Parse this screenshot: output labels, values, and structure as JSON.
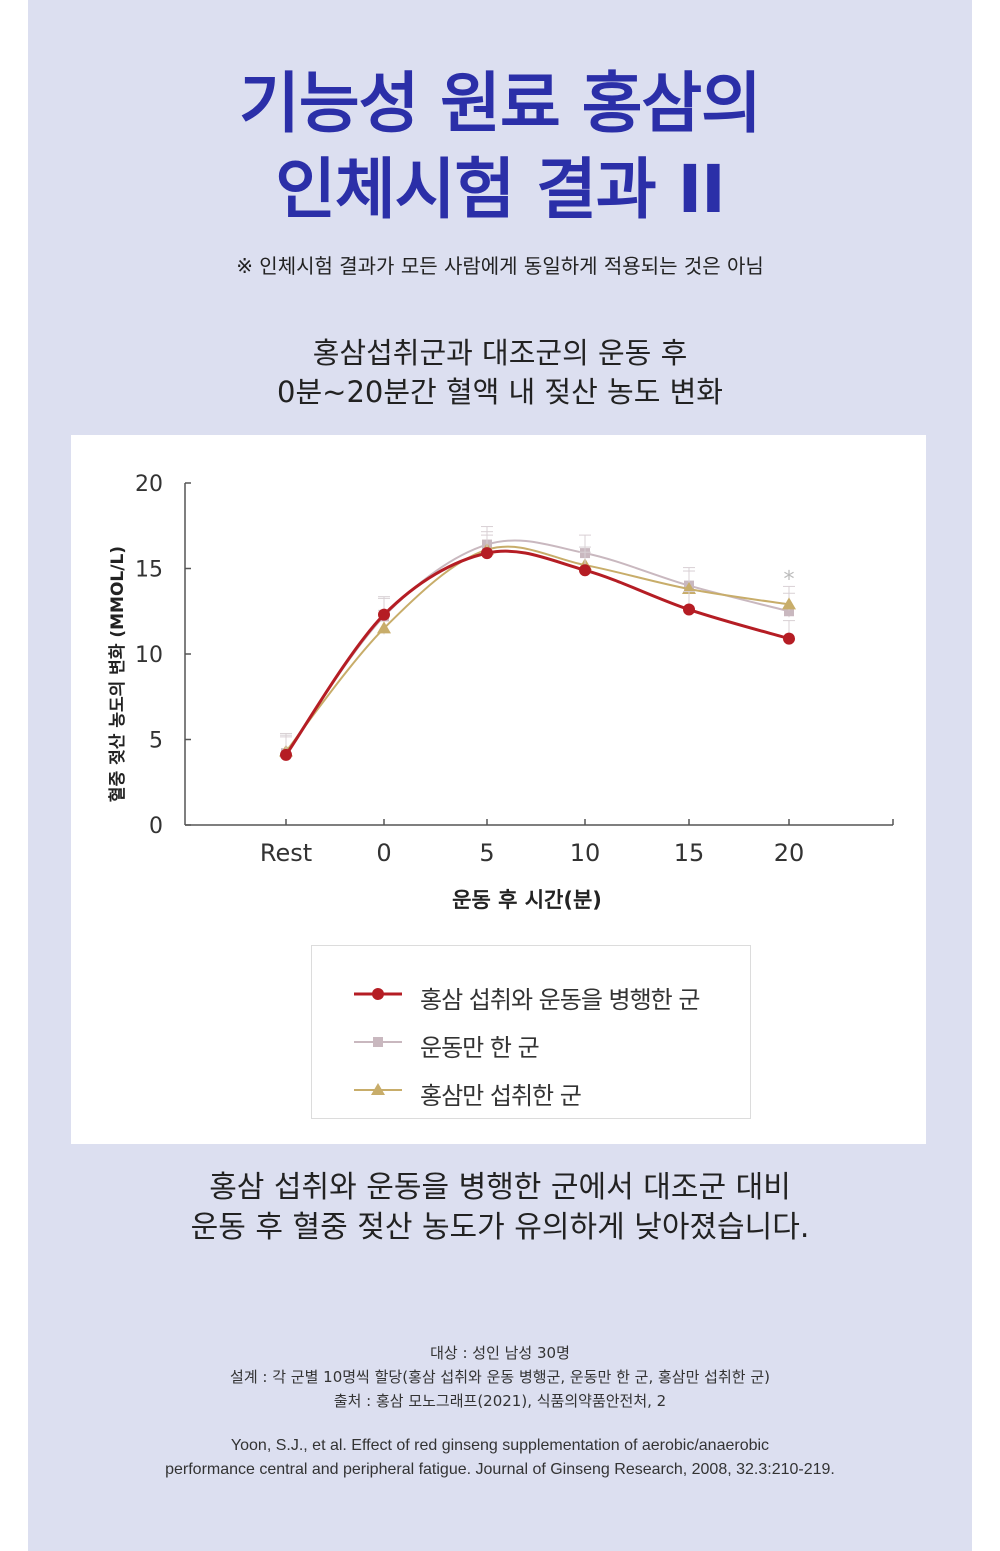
{
  "header": {
    "title_line1": "기능성 원료 홍삼의",
    "title_line2": "인체시험 결과 II",
    "disclaimer": "※ 인체시험 결과가 모든 사람에게 동일하게 적용되는 것은 아님",
    "subtitle_line1": "홍삼섭취군과 대조군의 운동 후",
    "subtitle_line2": "0분~20분간 혈액 내 젖산 농도 변화"
  },
  "colors": {
    "background": "#dcdff0",
    "title": "#2b2fa8",
    "series_red": "#b51d24",
    "series_gray": "#c9b8bf",
    "series_gold": "#c8ad6a"
  },
  "chart_data": {
    "type": "line",
    "xlabel": "운동 후 시간(분)",
    "ylabel": "혈중 젖산 농도의 변화 (MMOL/L)",
    "categories": [
      "Rest",
      "0",
      "5",
      "10",
      "15",
      "20"
    ],
    "yticks": [
      "0",
      "5",
      "10",
      "15",
      "20"
    ],
    "ylim": [
      0,
      20
    ],
    "grid": false,
    "legend_position": "bottom",
    "significance_marker": "*",
    "series": [
      {
        "name": "홍삼 섭취와 운동을 병행한 군",
        "marker": "circle",
        "color": "#b51d24",
        "values": [
          4.1,
          12.3,
          15.9,
          14.9,
          12.6,
          10.9
        ]
      },
      {
        "name": "운동만 한 군",
        "marker": "square",
        "color": "#c9b8bf",
        "values": [
          4.2,
          12.2,
          16.4,
          15.9,
          14.0,
          12.5
        ]
      },
      {
        "name": "홍삼만 섭취한 군",
        "marker": "triangle",
        "color": "#c8ad6a",
        "values": [
          4.3,
          11.5,
          16.1,
          15.2,
          13.8,
          12.9
        ]
      }
    ]
  },
  "footer": {
    "subject": "대상 : 성인 남성 30명",
    "design": "설계 : 각 군별 10명씩 할당(홍삼 섭취와 운동 병행군, 운동만 한 군, 홍삼만 섭취한 군)",
    "source": "출처 : 홍삼 모노그래프(2021), 식품의약품안전처, 2",
    "reference_line1": "Yoon, S.J., et al. Effect of red ginseng supplementation of aerobic/anaerobic",
    "reference_line2": "performance central and peripheral fatigue. Journal of Ginseng Research, 2008, 32.3:210-219."
  },
  "conclusion": {
    "line1": "홍삼 섭취와 운동을 병행한 군에서 대조군 대비",
    "line2": "운동 후 혈중 젖산 농도가 유의하게 낮아졌습니다."
  }
}
